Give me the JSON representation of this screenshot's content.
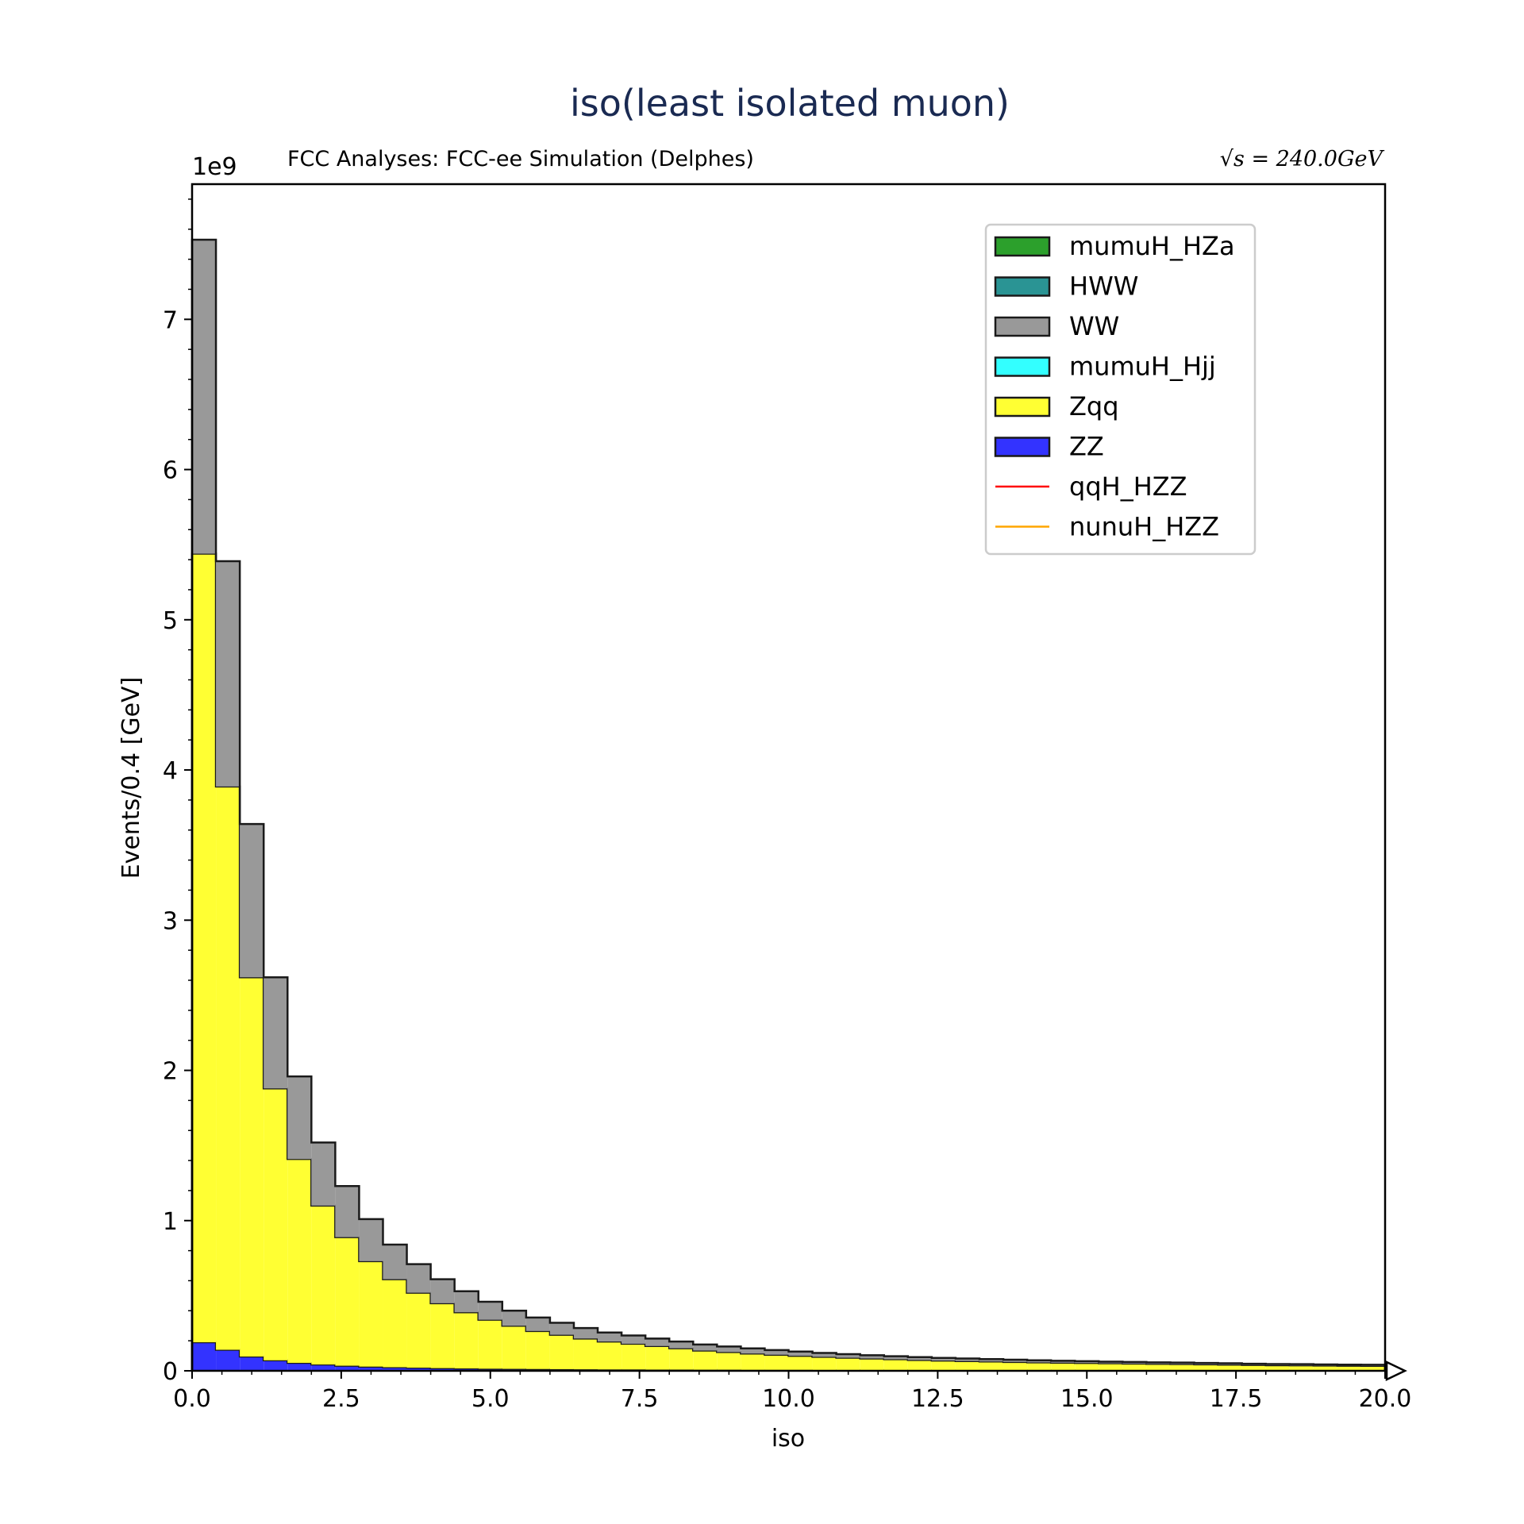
{
  "chart_data": {
    "type": "bar",
    "stacked": true,
    "histogram": true,
    "title": "iso(least isolated muon)",
    "subtitle_left": "FCC Analyses: FCC-ee Simulation (Delphes)",
    "subtitle_right": "√s = 240.0GeV",
    "xlabel": "iso",
    "ylabel": "Events/0.4 [GeV]",
    "y_multiplier": "1e9",
    "xlim": [
      0,
      20
    ],
    "ylim": [
      0,
      7.9
    ],
    "x_ticks": [
      "0.0",
      "2.5",
      "5.0",
      "7.5",
      "10.0",
      "12.5",
      "15.0",
      "17.5",
      "20.0"
    ],
    "y_ticks": [
      "0",
      "1",
      "2",
      "3",
      "4",
      "5",
      "6",
      "7"
    ],
    "bin_width": 0.4,
    "bin_edges_start": 0,
    "overflow_arrow": true,
    "legend_position": "top-right",
    "legend": [
      {
        "name": "mumuH_HZa",
        "kind": "patch",
        "color": "#2ca02c"
      },
      {
        "name": "HWW",
        "kind": "patch",
        "color": "#2a9494"
      },
      {
        "name": "WW",
        "kind": "patch",
        "color": "#999999"
      },
      {
        "name": "mumuH_Hjj",
        "kind": "patch",
        "color": "#33ffff"
      },
      {
        "name": "Zqq",
        "kind": "patch",
        "color": "#ffff33"
      },
      {
        "name": "ZZ",
        "kind": "patch",
        "color": "#3333ff"
      },
      {
        "name": "qqH_HZZ",
        "kind": "line",
        "color": "#ff0000"
      },
      {
        "name": "nunuH_HZZ",
        "kind": "line",
        "color": "#ffa500"
      }
    ],
    "series": [
      {
        "name": "ZZ",
        "color": "#3333ff",
        "values": [
          0.19,
          0.14,
          0.095,
          0.07,
          0.053,
          0.042,
          0.034,
          0.028,
          0.024,
          0.021,
          0.018,
          0.016,
          0.014,
          0.013,
          0.012,
          0.011,
          0.01,
          0.009,
          0.009,
          0.008,
          0.008,
          0.007,
          0.007,
          0.006,
          0.006,
          0.006,
          0.005,
          0.005,
          0.005,
          0.005,
          0.004,
          0.004,
          0.004,
          0.004,
          0.004,
          0.003,
          0.003,
          0.003,
          0.003,
          0.003,
          0.003,
          0.003,
          0.003,
          0.003,
          0.002,
          0.002,
          0.002,
          0.002,
          0.002,
          0.002
        ]
      },
      {
        "name": "Zqq",
        "color": "#ffff33",
        "values": [
          5.25,
          3.75,
          2.525,
          1.81,
          1.357,
          1.058,
          0.856,
          0.702,
          0.586,
          0.499,
          0.432,
          0.374,
          0.326,
          0.287,
          0.253,
          0.229,
          0.205,
          0.186,
          0.171,
          0.157,
          0.142,
          0.128,
          0.118,
          0.109,
          0.101,
          0.094,
          0.088,
          0.082,
          0.077,
          0.072,
          0.068,
          0.064,
          0.061,
          0.058,
          0.055,
          0.053,
          0.051,
          0.049,
          0.047,
          0.045,
          0.043,
          0.042,
          0.04,
          0.038,
          0.037,
          0.035,
          0.034,
          0.033,
          0.032,
          0.031
        ]
      },
      {
        "name": "mumuH_Hjj",
        "color": "#33ffff",
        "values": [
          0,
          0,
          0,
          0,
          0,
          0,
          0,
          0,
          0,
          0,
          0,
          0,
          0,
          0,
          0,
          0,
          0,
          0,
          0,
          0,
          0,
          0,
          0,
          0,
          0,
          0,
          0,
          0,
          0,
          0,
          0,
          0,
          0,
          0,
          0,
          0,
          0,
          0,
          0,
          0,
          0,
          0,
          0,
          0,
          0,
          0,
          0,
          0,
          0,
          0
        ]
      },
      {
        "name": "WW",
        "color": "#999999",
        "values": [
          2.09,
          1.5,
          1.02,
          0.74,
          0.55,
          0.42,
          0.34,
          0.28,
          0.23,
          0.19,
          0.16,
          0.14,
          0.12,
          0.1,
          0.09,
          0.08,
          0.07,
          0.06,
          0.055,
          0.05,
          0.045,
          0.04,
          0.037,
          0.034,
          0.031,
          0.028,
          0.026,
          0.024,
          0.022,
          0.02,
          0.019,
          0.018,
          0.017,
          0.016,
          0.015,
          0.014,
          0.013,
          0.012,
          0.011,
          0.011,
          0.01,
          0.01,
          0.009,
          0.009,
          0.008,
          0.008,
          0.008,
          0.007,
          0.007,
          0.007
        ]
      },
      {
        "name": "HWW",
        "color": "#2a9494",
        "values": [
          0,
          0,
          0,
          0,
          0,
          0,
          0,
          0,
          0,
          0,
          0,
          0,
          0,
          0,
          0,
          0,
          0,
          0,
          0,
          0,
          0,
          0,
          0,
          0,
          0,
          0,
          0,
          0,
          0,
          0,
          0,
          0,
          0,
          0,
          0,
          0,
          0,
          0,
          0,
          0,
          0,
          0,
          0,
          0,
          0,
          0,
          0,
          0,
          0,
          0
        ]
      },
      {
        "name": "mumuH_HZa",
        "color": "#2ca02c",
        "values": [
          0,
          0,
          0,
          0,
          0,
          0,
          0,
          0,
          0,
          0,
          0,
          0,
          0,
          0,
          0,
          0,
          0,
          0,
          0,
          0,
          0,
          0,
          0,
          0,
          0,
          0,
          0,
          0,
          0,
          0,
          0,
          0,
          0,
          0,
          0,
          0,
          0,
          0,
          0,
          0,
          0,
          0,
          0,
          0,
          0,
          0,
          0,
          0,
          0,
          0
        ]
      }
    ]
  }
}
